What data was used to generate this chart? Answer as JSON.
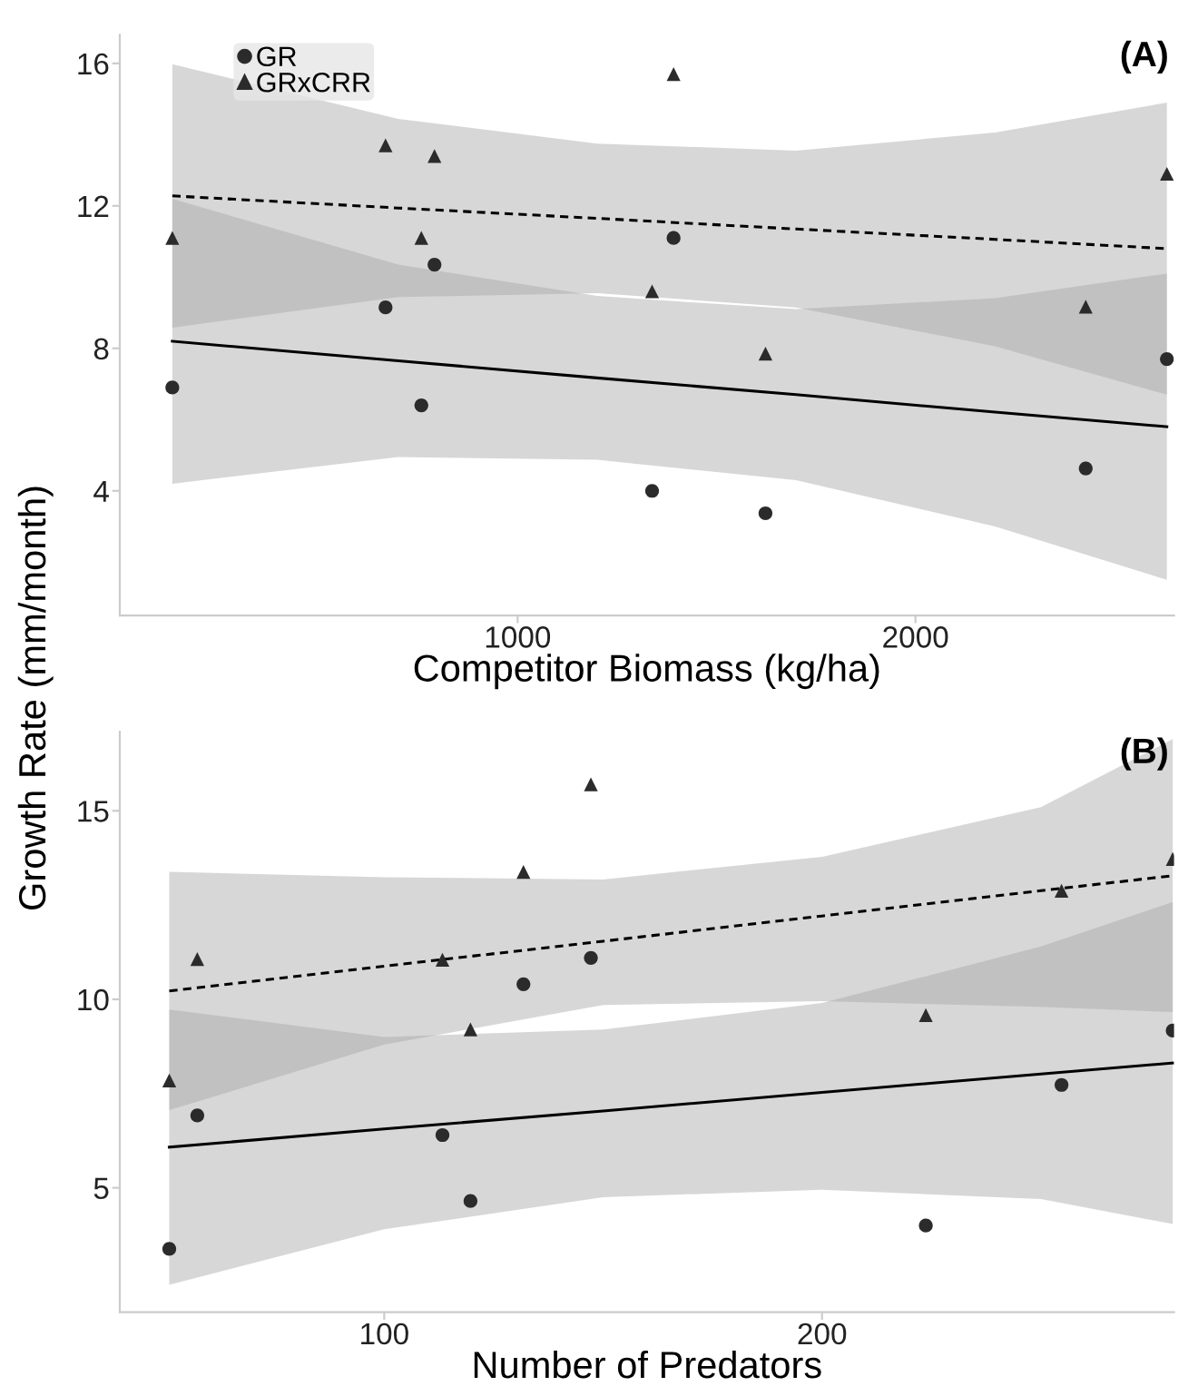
{
  "chart_data": [
    {
      "type": "scatter",
      "title": "(A)",
      "xlabel": "Competitor Biomass (kg/ha)",
      "ylabel": "Growth Rate (mm/month)",
      "xlim": [
        0,
        2650
      ],
      "ylim": [
        0.5,
        16.8
      ],
      "xticks": [
        1000,
        2000
      ],
      "yticks": [
        4,
        8,
        12,
        16
      ],
      "grid": false,
      "legend": "top left",
      "series": [
        {
          "name": "GR",
          "marker": "circle",
          "color": "#2b2b2b",
          "x": [
            132,
            668,
            758,
            791,
            1338,
            1392,
            1623,
            2428,
            2632
          ],
          "values": [
            6.9,
            9.15,
            6.4,
            10.35,
            4.0,
            11.1,
            3.37,
            4.63,
            7.7
          ]
        },
        {
          "name": "GRxCRR",
          "marker": "triangle",
          "color": "#2b2b2b",
          "x": [
            132,
            668,
            758,
            791,
            1338,
            1392,
            1623,
            2428,
            2632
          ],
          "values": [
            11.1,
            13.7,
            11.1,
            13.4,
            9.6,
            15.7,
            7.85,
            9.17,
            12.9
          ]
        },
        {
          "type": "line",
          "line_style": "solid",
          "color": "#000000",
          "x": [
            132,
            700,
            1200,
            1700,
            2200,
            2632
          ],
          "values": [
            8.2,
            7.65,
            7.17,
            6.7,
            6.21,
            5.8
          ],
          "lower": [
            4.2,
            4.95,
            4.87,
            4.3,
            3.0,
            1.5
          ],
          "upper": [
            12.2,
            10.35,
            9.47,
            9.1,
            9.41,
            10.1
          ]
        },
        {
          "type": "line",
          "line_style": "dashed",
          "color": "#000000",
          "x": [
            132,
            700,
            1200,
            1700,
            2200,
            2632
          ],
          "values": [
            12.28,
            11.94,
            11.65,
            11.35,
            11.06,
            10.8
          ],
          "lower": [
            8.58,
            9.44,
            9.55,
            9.15,
            8.06,
            6.7
          ],
          "upper": [
            15.98,
            14.44,
            13.75,
            13.55,
            14.06,
            14.9
          ]
        }
      ]
    },
    {
      "type": "scatter",
      "title": "(B)",
      "xlabel": "Number of Predators",
      "xlim": [
        39.6,
        280.4
      ],
      "ylim": [
        1.7,
        17.1
      ],
      "xticks": [
        100,
        200
      ],
      "yticks": [
        5,
        10,
        15
      ],
      "grid": false,
      "series": [
        {
          "marker": "circle",
          "color": "#2b2b2b",
          "x": [
            50.9,
            57.3,
            113.3,
            119.7,
            131.8,
            147.2,
            223.7,
            254.7,
            280.1
          ],
          "values": [
            3.38,
            6.92,
            6.4,
            4.65,
            10.4,
            11.1,
            4.0,
            7.73,
            9.17
          ]
        },
        {
          "marker": "triangle",
          "color": "#2b2b2b",
          "x": [
            50.9,
            57.3,
            113.3,
            119.7,
            131.8,
            147.2,
            223.7,
            254.7,
            280.1
          ],
          "values": [
            7.85,
            11.07,
            11.05,
            9.2,
            13.38,
            15.7,
            9.58,
            12.88,
            13.72
          ]
        },
        {
          "type": "line",
          "line_style": "solid",
          "color": "#000000",
          "x": [
            50.9,
            100,
            150,
            200,
            250,
            280.1
          ],
          "values": [
            6.08,
            6.56,
            7.04,
            7.53,
            8.02,
            8.31
          ],
          "lower": [
            2.43,
            3.9,
            4.75,
            4.95,
            4.7,
            4.04
          ],
          "upper": [
            9.73,
            9.0,
            9.2,
            9.9,
            11.4,
            12.58
          ]
        },
        {
          "type": "line",
          "line_style": "dashed",
          "color": "#000000",
          "x": [
            50.9,
            100,
            150,
            200,
            250,
            280.1
          ],
          "values": [
            10.22,
            10.88,
            11.54,
            12.21,
            12.88,
            13.28
          ],
          "lower": [
            7.06,
            8.8,
            9.85,
            9.95,
            9.8,
            9.66
          ],
          "upper": [
            13.38,
            13.24,
            13.18,
            13.78,
            15.1,
            16.9
          ]
        }
      ]
    }
  ]
}
